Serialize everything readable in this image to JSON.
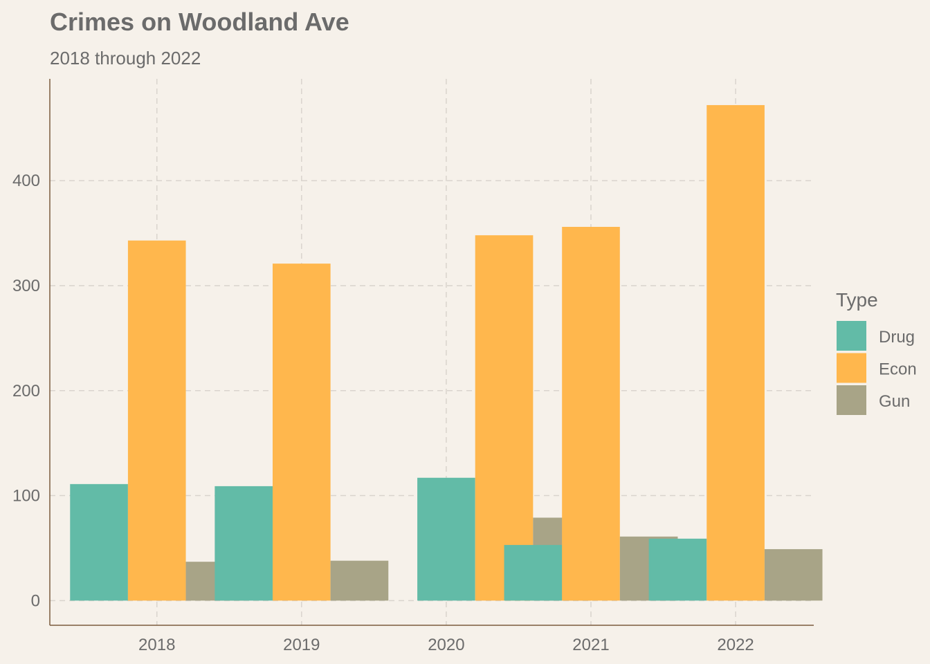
{
  "chart_data": {
    "type": "bar",
    "title": "Crimes on Woodland Ave",
    "subtitle": "2018 through 2022",
    "categories": [
      "2018",
      "2019",
      "2020",
      "2021",
      "2022"
    ],
    "series": [
      {
        "name": "Drug",
        "color": "#62bba7",
        "values": [
          111,
          109,
          117,
          53,
          59
        ]
      },
      {
        "name": "Econ",
        "color": "#ffb74d",
        "values": [
          343,
          321,
          348,
          356,
          472
        ]
      },
      {
        "name": "Gun",
        "color": "#a8a487",
        "values": [
          37,
          38,
          79,
          61,
          49
        ]
      }
    ],
    "bar_x_offsets_years": [
      [
        -0.4,
        0.0,
        0.4
      ],
      [
        -0.4,
        0.0,
        0.4
      ],
      [
        0.0,
        0.4,
        0.8
      ],
      [
        -0.4,
        0.0,
        0.4
      ],
      [
        -0.4,
        0.0,
        0.4
      ]
    ],
    "xlim": [
      2017.26,
      2022.54
    ],
    "ylim": [
      -23.5,
      497
    ],
    "yticks": [
      0,
      100,
      200,
      300,
      400
    ],
    "xticks": [
      "2018",
      "2019",
      "2020",
      "2021",
      "2022"
    ],
    "xlabel": "",
    "ylabel": "",
    "legend": {
      "title": "Type",
      "position": "right"
    },
    "grid": true
  }
}
